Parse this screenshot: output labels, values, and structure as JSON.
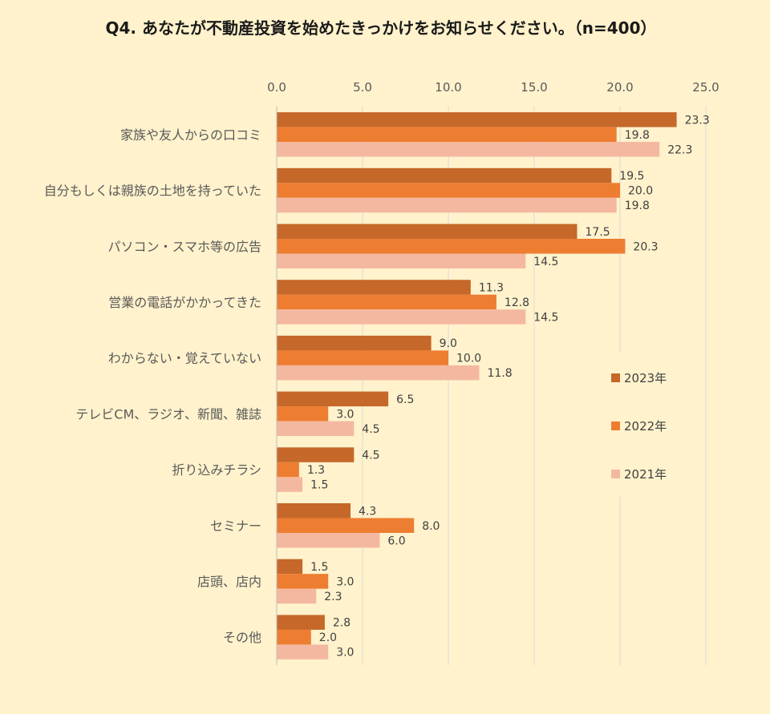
{
  "chart_data": {
    "type": "bar",
    "orientation": "horizontal",
    "title": "Q4. あなたが不動産投資を始めたきっかけをお知らせください。（n=400）",
    "xlim": [
      0,
      25
    ],
    "ticks": [
      "0.0",
      "5.0",
      "10.0",
      "15.0",
      "20.0",
      "25.0"
    ],
    "tick_values": [
      0,
      5,
      10,
      15,
      20,
      25
    ],
    "categories": [
      "家族や友人からの口コミ",
      "自分もしくは親族の土地を持っていた",
      "パソコン・スマホ等の広告",
      "営業の電話がかかってきた",
      "わからない・覚えていない",
      "テレビCM、ラジオ、新聞、雑誌",
      "折り込みチラシ",
      "セミナー",
      "店頭、店内",
      "その他"
    ],
    "series": [
      {
        "name": "2023年",
        "color": "#C5682A",
        "values": [
          23.3,
          19.5,
          17.5,
          11.3,
          9.0,
          6.5,
          4.5,
          4.3,
          1.5,
          2.8
        ],
        "labels": [
          "23.3",
          "19.5",
          "17.5",
          "11.3",
          "9.0",
          "6.5",
          "4.5",
          "4.3",
          "1.5",
          "2.8"
        ]
      },
      {
        "name": "2022年",
        "color": "#ED7D31",
        "values": [
          19.8,
          20.0,
          20.3,
          12.8,
          10.0,
          3.0,
          1.3,
          8.0,
          3.0,
          2.0
        ],
        "labels": [
          "19.8",
          "20.0",
          "20.3",
          "12.8",
          "10.0",
          "3.0",
          "1.3",
          "8.0",
          "3.0",
          "2.0"
        ]
      },
      {
        "name": "2021年",
        "color": "#F4B8A0",
        "values": [
          22.3,
          19.8,
          14.5,
          14.5,
          11.8,
          4.5,
          1.5,
          6.0,
          2.3,
          3.0
        ],
        "labels": [
          "22.3",
          "19.8",
          "14.5",
          "14.5",
          "11.8",
          "4.5",
          "1.5",
          "6.0",
          "2.3",
          "3.0"
        ]
      }
    ],
    "grid": true,
    "legend": "right"
  }
}
